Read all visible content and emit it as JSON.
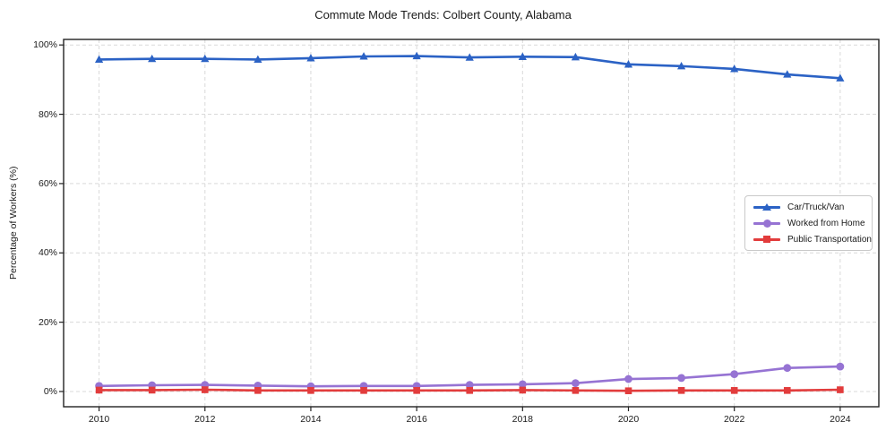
{
  "chart_data": {
    "type": "line",
    "title": "Commute Mode Trends: Colbert County, Alabama",
    "xlabel": "",
    "ylabel": "Percentage of Workers (%)",
    "x": [
      2010,
      2011,
      2012,
      2013,
      2014,
      2015,
      2016,
      2017,
      2018,
      2019,
      2020,
      2021,
      2022,
      2023,
      2024
    ],
    "series": [
      {
        "name": "Car/Truck/Van",
        "marker": "triangle",
        "color": "#2b62c5",
        "values": [
          95.8,
          96.0,
          96.0,
          95.8,
          96.2,
          96.7,
          96.8,
          96.4,
          96.6,
          96.5,
          94.4,
          93.9,
          93.1,
          91.5,
          90.4
        ]
      },
      {
        "name": "Worked from Home",
        "marker": "circle",
        "color": "#9673d3",
        "values": [
          1.6,
          1.8,
          1.9,
          1.7,
          1.5,
          1.6,
          1.6,
          1.9,
          2.1,
          2.4,
          3.6,
          3.9,
          5.0,
          6.8,
          7.2
        ]
      },
      {
        "name": "Public Transportation",
        "marker": "square",
        "color": "#e23c3c",
        "values": [
          0.4,
          0.4,
          0.5,
          0.3,
          0.3,
          0.3,
          0.3,
          0.3,
          0.4,
          0.3,
          0.2,
          0.3,
          0.3,
          0.3,
          0.5
        ]
      }
    ],
    "xlim": [
      2009.33,
      2024.73
    ],
    "ylim": [
      -4.4,
      101.6
    ],
    "yticks": [
      0,
      20,
      40,
      60,
      80,
      100
    ],
    "ytick_labels": [
      "0%",
      "20%",
      "40%",
      "60%",
      "80%",
      "100%"
    ],
    "xticks": [
      2010,
      2012,
      2014,
      2016,
      2018,
      2020,
      2022,
      2024
    ],
    "xtick_labels": [
      "2010",
      "2012",
      "2014",
      "2016",
      "2018",
      "2020",
      "2022",
      "2024"
    ],
    "grid": true,
    "grid_style": "dashed",
    "legend_position": "center-right"
  },
  "colors": {
    "grid": "#d9d9d9",
    "spine": "#222222",
    "text": "#1a1a1a"
  }
}
